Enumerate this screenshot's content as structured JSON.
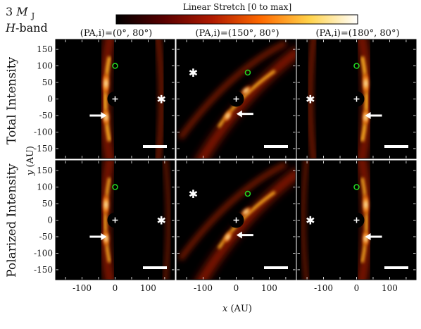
{
  "header": {
    "mass_number": "3",
    "mass_symbol": "M",
    "mass_subscript": "J",
    "band_italic": "H",
    "band_rest": "-band"
  },
  "colorbar": {
    "label": "Linear Stretch [0 to max]",
    "colormap": "afmhot",
    "colors": [
      "#000000",
      "#5a0000",
      "#b01a00",
      "#ff6a00",
      "#ffd24a",
      "#ffffff"
    ]
  },
  "columns": [
    {
      "title": "(PA,i)=(0°, 80°)",
      "pa": 0,
      "inclination": 80
    },
    {
      "title": "(PA,i)=(150°, 80°)",
      "pa": 150,
      "inclination": 80
    },
    {
      "title": "(PA,i)=(180°, 80°)",
      "pa": 180,
      "inclination": 80
    }
  ],
  "rows": [
    {
      "label": "Total Intensity"
    },
    {
      "label": "Polarized Intensity"
    }
  ],
  "axes": {
    "xlabel_var": "x",
    "xlabel_unit": "(AU)",
    "ylabel_var": "y",
    "ylabel_unit": "(AU)",
    "xlim": [
      -180,
      180
    ],
    "ylim": [
      -180,
      180
    ],
    "xticks": [
      "-100",
      "0",
      "100"
    ],
    "yticks": [
      "150",
      "100",
      "50",
      "0",
      "-50",
      "-100",
      "-150"
    ]
  },
  "markers": {
    "star_symbol": "+",
    "planet_marker_color": "#22dd22",
    "arrow_color": "#ffffff",
    "asterisk_symbol": "✱",
    "scale_bar_color": "#ffffff"
  }
}
